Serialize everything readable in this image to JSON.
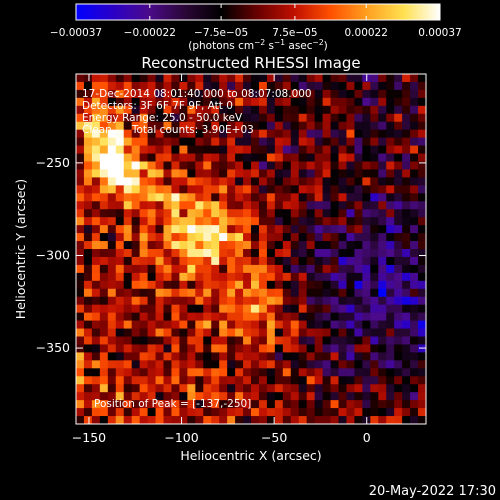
{
  "chart_data": {
    "type": "heatmap",
    "title": "Reconstructed RHESSI Image",
    "xlabel": "Heliocentric X (arcsec)",
    "ylabel": "Heliocentric Y (arcsec)",
    "xlim": [
      -157,
      32
    ],
    "ylim": [
      -391,
      -202
    ],
    "x_ticks": [
      -150,
      -100,
      -50,
      0
    ],
    "x_tick_labels": [
      "−150",
      "−100",
      "−50",
      "0"
    ],
    "y_ticks": [
      -250,
      -300,
      -350
    ],
    "y_tick_labels": [
      "−250",
      "−300",
      "−350"
    ],
    "colorbar": {
      "range": [
        -0.00037,
        0.00037
      ],
      "tick_values": [
        -0.00037,
        -0.00022,
        -7.5e-05,
        7.5e-05,
        0.00022,
        0.00037
      ],
      "tick_labels": [
        "−0.00037",
        "−0.00022",
        "−7.5e−05",
        "7.5e−05",
        "0.00022",
        "0.00037"
      ],
      "units_text": "(photons cm",
      "units_exp1": "−2",
      "units_mid": " s",
      "units_exp2": "−1",
      "units_mid2": " asec",
      "units_exp3": "−2",
      "units_close": ")",
      "stops": [
        "#0000ff",
        "#2a00c8",
        "#4b0a8a",
        "#2a0636",
        "#000000",
        "#6a0000",
        "#c01000",
        "#ff5000",
        "#ffa020",
        "#ffe050",
        "#ffffff"
      ]
    },
    "annotations": {
      "time_range": "17-Dec-2014 08:01:40.000 to 08:07:08.000",
      "detectors": "Detectors: 3F 6F 7F 9F, Att 0",
      "energy": "Energy Range: 25.0 - 50.0 keV",
      "clean": "Clean      Total counts: 3.90E+03",
      "peak": "Position of Peak = [-137,-250]"
    },
    "peak": {
      "x": -137,
      "y": -250
    },
    "features": [
      {
        "kind": "source",
        "x": -137,
        "y": -250,
        "sigma": 9,
        "amp": 1.0
      },
      {
        "kind": "source",
        "x": -145,
        "y": -228,
        "sigma": 10,
        "amp": 0.55
      },
      {
        "kind": "source",
        "x": -88,
        "y": -288,
        "sigma": 16,
        "amp": 0.7
      },
      {
        "kind": "source",
        "x": -62,
        "y": -328,
        "sigma": 14,
        "amp": 0.5
      },
      {
        "kind": "source",
        "x": -118,
        "y": -262,
        "sigma": 12,
        "amp": 0.4
      },
      {
        "kind": "negative_region",
        "x": 10,
        "y": -320,
        "sigma": 35,
        "amp": -0.45
      }
    ],
    "timestamp": "20-May-2022 17:30"
  }
}
